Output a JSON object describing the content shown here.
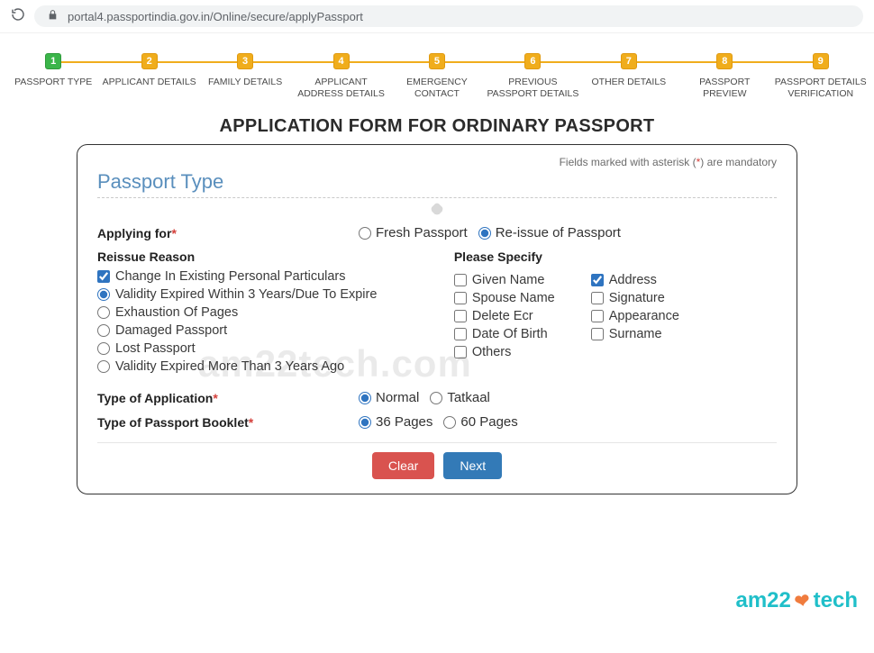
{
  "browser": {
    "url": "portal4.passportindia.gov.in/Online/secure/applyPassport"
  },
  "stepper": {
    "steps": [
      {
        "num": "1",
        "label": "PASSPORT TYPE",
        "active": true
      },
      {
        "num": "2",
        "label": "APPLICANT DETAILS"
      },
      {
        "num": "3",
        "label": "FAMILY DETAILS"
      },
      {
        "num": "4",
        "label": "APPLICANT ADDRESS DETAILS"
      },
      {
        "num": "5",
        "label": "EMERGENCY CONTACT"
      },
      {
        "num": "6",
        "label": "PREVIOUS PASSPORT DETAILS"
      },
      {
        "num": "7",
        "label": "OTHER DETAILS"
      },
      {
        "num": "8",
        "label": "PASSPORT PREVIEW"
      },
      {
        "num": "9",
        "label": "PASSPORT DETAILS VERIFICATION"
      }
    ]
  },
  "page_title": "APPLICATION FORM FOR ORDINARY PASSPORT",
  "mandatory_note_pre": "Fields marked with asterisk (",
  "mandatory_note_ast": "*",
  "mandatory_note_post": ") are mandatory",
  "section_title": "Passport Type",
  "applying_for": {
    "label": "Applying for",
    "options": {
      "fresh": "Fresh Passport",
      "reissue": "Re-issue of Passport"
    },
    "selected": "reissue"
  },
  "reissue": {
    "title": "Reissue Reason",
    "check_change": "Change In Existing Personal Particulars",
    "radios": [
      "Validity Expired Within 3 Years/Due To Expire",
      "Exhaustion Of Pages",
      "Damaged Passport",
      "Lost Passport",
      "Validity Expired More Than 3 Years Ago"
    ]
  },
  "specify": {
    "title": "Please Specify",
    "col1": [
      "Given Name",
      "Spouse Name",
      "Delete Ecr",
      "Date Of Birth",
      "Others"
    ],
    "col2": [
      "Address",
      "Signature",
      "Appearance",
      "Surname"
    ],
    "checked": [
      "Address"
    ]
  },
  "app_type": {
    "label": "Type of Application",
    "options": {
      "normal": "Normal",
      "tatkaal": "Tatkaal"
    },
    "selected": "normal"
  },
  "booklet": {
    "label": "Type of Passport Booklet",
    "options": {
      "p36": "36 Pages",
      "p60": "60 Pages"
    },
    "selected": "p36"
  },
  "buttons": {
    "clear": "Clear",
    "next": "Next"
  },
  "watermark": "am22tech.com",
  "brand": {
    "a": "am22",
    "b": "tech"
  }
}
